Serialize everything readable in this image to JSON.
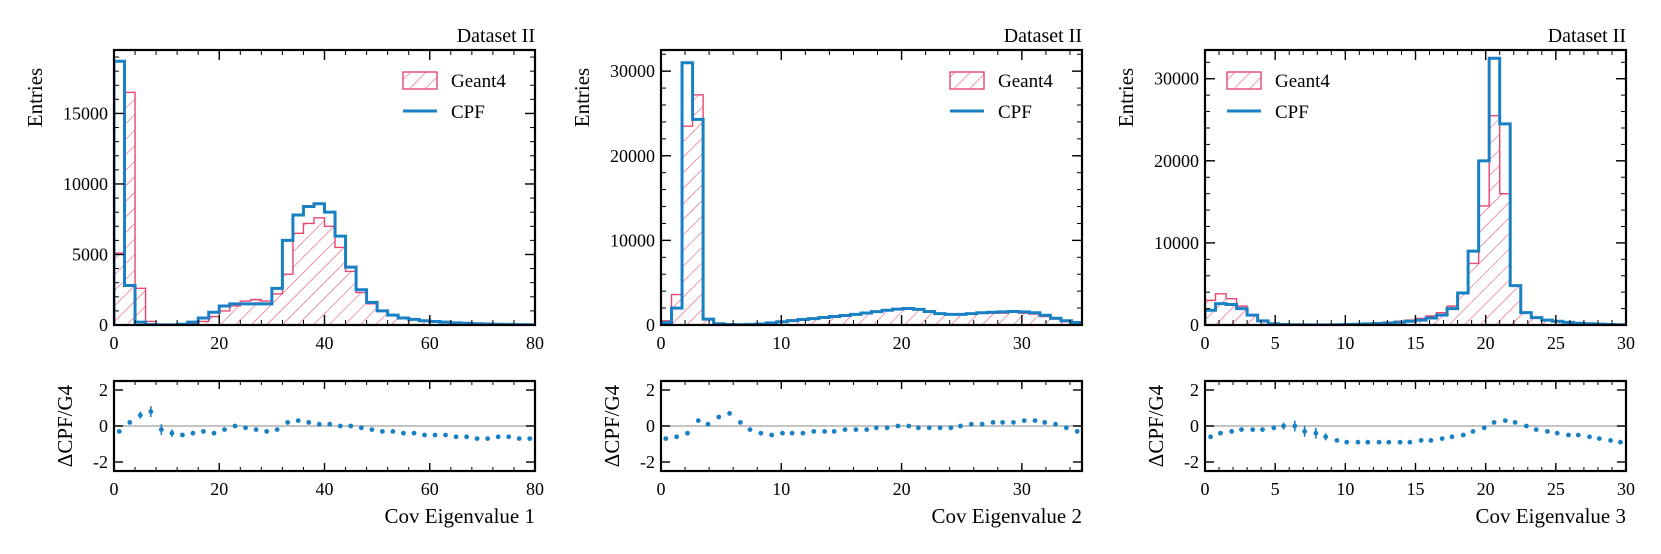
{
  "colors": {
    "geant4": "#e8466f",
    "cpf": "#1a80c4",
    "ratio_points": "#1a80c4",
    "zero_line": "#b0b0b0",
    "axes": "#000000"
  },
  "legend": {
    "geant4_label": "Geant4",
    "cpf_label": "CPF"
  },
  "chart_data": [
    {
      "type": "histogram",
      "title": "Dataset II",
      "xlabel": "Cov Eigenvalue 1",
      "ylabel": "Entries",
      "ratio_ylabel": "ΔCPF/G4",
      "legend_position": "top-right",
      "xlim": [
        0,
        80
      ],
      "ylim": [
        0,
        19500
      ],
      "xticks": [
        0,
        20,
        40,
        60,
        80
      ],
      "yticks": [
        0,
        5000,
        10000,
        15000
      ],
      "ratio_ylim": [
        -2.5,
        2.5
      ],
      "ratio_yticks": [
        -2,
        0,
        2
      ],
      "bin_edges": [
        0,
        2,
        4,
        6,
        8,
        10,
        12,
        14,
        16,
        18,
        20,
        22,
        24,
        26,
        28,
        30,
        32,
        34,
        36,
        38,
        40,
        42,
        44,
        46,
        48,
        50,
        52,
        54,
        56,
        58,
        60,
        62,
        64,
        66,
        68,
        70,
        72,
        74,
        76,
        78,
        80
      ],
      "series": [
        {
          "name": "Geant4",
          "style": "hatched",
          "values": [
            5100,
            16500,
            2600,
            250,
            60,
            30,
            30,
            80,
            250,
            600,
            1000,
            1350,
            1700,
            1800,
            1700,
            2200,
            3600,
            6500,
            7200,
            7600,
            7000,
            5500,
            3800,
            2300,
            1500,
            1000,
            700,
            500,
            400,
            300,
            250,
            200,
            150,
            120,
            90,
            70,
            50,
            40,
            30,
            20
          ]
        },
        {
          "name": "CPF",
          "style": "step",
          "values": [
            18700,
            2800,
            200,
            30,
            10,
            10,
            50,
            200,
            500,
            900,
            1350,
            1500,
            1500,
            1500,
            1500,
            2600,
            6000,
            7800,
            8400,
            8600,
            8000,
            6300,
            4100,
            2500,
            1600,
            1000,
            700,
            500,
            400,
            300,
            250,
            200,
            150,
            120,
            90,
            70,
            50,
            40,
            30,
            20
          ]
        }
      ],
      "ratio": {
        "x": [
          1,
          3,
          5,
          7,
          9,
          11,
          13,
          15,
          17,
          19,
          21,
          23,
          25,
          27,
          29,
          31,
          33,
          35,
          37,
          39,
          41,
          43,
          45,
          47,
          49,
          51,
          53,
          55,
          57,
          59,
          61,
          63,
          65,
          67,
          69,
          71,
          73,
          75,
          77,
          79
        ],
        "values": [
          -0.3,
          0.2,
          0.6,
          0.8,
          -0.2,
          -0.4,
          -0.5,
          -0.4,
          -0.3,
          -0.4,
          -0.2,
          0,
          -0.1,
          -0.2,
          -0.3,
          -0.2,
          0.2,
          0.3,
          0.2,
          0.1,
          0.1,
          0,
          0,
          -0.1,
          -0.2,
          -0.3,
          -0.3,
          -0.4,
          -0.4,
          -0.5,
          -0.5,
          -0.5,
          -0.6,
          -0.6,
          -0.7,
          -0.7,
          -0.6,
          -0.6,
          -0.7,
          -0.7
        ],
        "errors": [
          0.1,
          0.1,
          0.2,
          0.3,
          0.3,
          0.2,
          0.1,
          0.1,
          0.1,
          0.05,
          0.05,
          0.05,
          0.05,
          0.05,
          0.05,
          0.05,
          0.05,
          0.05,
          0.05,
          0.05,
          0.05,
          0.05,
          0.05,
          0.05,
          0.05,
          0.05,
          0.05,
          0.05,
          0.05,
          0.05,
          0.05,
          0.05,
          0.05,
          0.05,
          0.05,
          0.05,
          0.05,
          0.05,
          0.05,
          0.05
        ]
      }
    },
    {
      "type": "histogram",
      "title": "Dataset II",
      "xlabel": "Cov Eigenvalue 2",
      "ylabel": "Entries",
      "ratio_ylabel": "ΔCPF/G4",
      "legend_position": "top-right",
      "xlim": [
        0,
        35
      ],
      "ylim": [
        0,
        32500
      ],
      "xticks": [
        0,
        10,
        20,
        30
      ],
      "yticks": [
        0,
        10000,
        20000,
        30000
      ],
      "ratio_ylim": [
        -2.5,
        2.5
      ],
      "ratio_yticks": [
        -2,
        0,
        2
      ],
      "bin_edges": [
        0,
        0.875,
        1.75,
        2.625,
        3.5,
        4.375,
        5.25,
        6.125,
        7,
        7.875,
        8.75,
        9.625,
        10.5,
        11.375,
        12.25,
        13.125,
        14,
        14.875,
        15.75,
        16.625,
        17.5,
        18.375,
        19.25,
        20.125,
        21,
        21.875,
        22.75,
        23.625,
        24.5,
        25.375,
        26.25,
        27.125,
        28,
        28.875,
        29.75,
        30.625,
        31.5,
        32.375,
        33.25,
        34.125,
        35
      ],
      "series": [
        {
          "name": "Geant4",
          "style": "hatched",
          "values": [
            500,
            3600,
            23500,
            27200,
            700,
            200,
            80,
            50,
            80,
            150,
            300,
            450,
            600,
            700,
            800,
            900,
            1000,
            1100,
            1200,
            1400,
            1500,
            1700,
            1800,
            1900,
            1800,
            1600,
            1300,
            1200,
            1200,
            1300,
            1400,
            1400,
            1400,
            1500,
            1400,
            1300,
            1000,
            700,
            400,
            250
          ]
        },
        {
          "name": "CPF",
          "style": "step",
          "values": [
            300,
            2000,
            31000,
            24300,
            700,
            150,
            60,
            40,
            70,
            120,
            250,
            380,
            520,
            650,
            760,
            880,
            1000,
            1120,
            1250,
            1420,
            1580,
            1750,
            1870,
            1950,
            1850,
            1600,
            1350,
            1250,
            1250,
            1350,
            1450,
            1500,
            1550,
            1600,
            1550,
            1450,
            1150,
            800,
            500,
            300
          ]
        }
      ],
      "ratio": {
        "x": [
          0.4,
          1.3,
          2.2,
          3.1,
          3.9,
          4.8,
          5.7,
          6.6,
          7.4,
          8.3,
          9.2,
          10.1,
          10.9,
          11.8,
          12.7,
          13.6,
          14.4,
          15.3,
          16.2,
          17.1,
          17.9,
          18.8,
          19.7,
          20.6,
          21.4,
          22.3,
          23.2,
          24.1,
          24.9,
          25.8,
          26.7,
          27.6,
          28.4,
          29.3,
          30.2,
          31.1,
          31.9,
          32.8,
          33.7,
          34.6
        ],
        "values": [
          -0.7,
          -0.6,
          -0.4,
          0.3,
          0.1,
          0.5,
          0.7,
          0.2,
          -0.2,
          -0.4,
          -0.5,
          -0.4,
          -0.4,
          -0.4,
          -0.3,
          -0.3,
          -0.3,
          -0.2,
          -0.2,
          -0.2,
          -0.1,
          -0.1,
          0,
          0,
          -0.1,
          -0.1,
          -0.1,
          -0.1,
          0,
          0.1,
          0.1,
          0.2,
          0.2,
          0.2,
          0.3,
          0.3,
          0.2,
          0.1,
          -0.1,
          -0.3
        ],
        "errors": [
          0.1,
          0.1,
          0.1,
          0.05,
          0.05,
          0.1,
          0.1,
          0.1,
          0.1,
          0.1,
          0.05,
          0.05,
          0.05,
          0.05,
          0.05,
          0.05,
          0.05,
          0.05,
          0.05,
          0.05,
          0.05,
          0.05,
          0.05,
          0.05,
          0.05,
          0.05,
          0.05,
          0.05,
          0.05,
          0.05,
          0.05,
          0.05,
          0.05,
          0.05,
          0.05,
          0.05,
          0.05,
          0.05,
          0.05,
          0.05
        ]
      }
    },
    {
      "type": "histogram",
      "title": "Dataset II",
      "xlabel": "Cov Eigenvalue 3",
      "ylabel": "Entries",
      "ratio_ylabel": "ΔCPF/G4",
      "legend_position": "top-left",
      "xlim": [
        0,
        30
      ],
      "ylim": [
        0,
        33500
      ],
      "xticks": [
        0,
        5,
        10,
        15,
        20,
        25,
        30
      ],
      "yticks": [
        0,
        10000,
        20000,
        30000
      ],
      "ratio_ylim": [
        -2.5,
        2.5
      ],
      "ratio_yticks": [
        -2,
        0,
        2
      ],
      "bin_edges": [
        0,
        0.75,
        1.5,
        2.25,
        3,
        3.75,
        4.5,
        5.25,
        6,
        6.75,
        7.5,
        8.25,
        9,
        9.75,
        10.5,
        11.25,
        12,
        12.75,
        13.5,
        14.25,
        15,
        15.75,
        16.5,
        17.25,
        18,
        18.75,
        19.5,
        20.25,
        21,
        21.75,
        22.5,
        23.25,
        24,
        24.75,
        25.5,
        26.25,
        27,
        27.75,
        28.5,
        29.25,
        30
      ],
      "series": [
        {
          "name": "Geant4",
          "style": "hatched",
          "values": [
            3000,
            3800,
            3200,
            2300,
            1200,
            500,
            150,
            60,
            30,
            20,
            20,
            30,
            50,
            80,
            120,
            180,
            250,
            350,
            450,
            600,
            800,
            1100,
            1500,
            2300,
            4000,
            7500,
            14500,
            25500,
            16000,
            4800,
            1500,
            900,
            600,
            450,
            320,
            220,
            150,
            100,
            60,
            30
          ]
        },
        {
          "name": "CPF",
          "style": "step",
          "values": [
            1800,
            2600,
            2500,
            2000,
            1200,
            500,
            150,
            60,
            30,
            20,
            15,
            20,
            35,
            60,
            90,
            130,
            180,
            250,
            330,
            450,
            600,
            850,
            1200,
            2000,
            3900,
            9000,
            20000,
            32500,
            24500,
            4800,
            1500,
            900,
            600,
            450,
            320,
            220,
            150,
            100,
            60,
            30
          ]
        }
      ],
      "ratio": {
        "x": [
          0.4,
          1.1,
          1.9,
          2.6,
          3.4,
          4.1,
          4.9,
          5.6,
          6.4,
          7.1,
          7.9,
          8.6,
          9.4,
          10.1,
          10.9,
          11.6,
          12.4,
          13.1,
          13.9,
          14.6,
          15.4,
          16.1,
          16.9,
          17.6,
          18.4,
          19.1,
          19.9,
          20.6,
          21.4,
          22.1,
          22.9,
          23.6,
          24.4,
          25.1,
          25.9,
          26.6,
          27.4,
          28.1,
          28.9,
          29.6
        ],
        "values": [
          -0.6,
          -0.4,
          -0.3,
          -0.2,
          -0.2,
          -0.2,
          -0.1,
          0,
          0,
          -0.3,
          -0.4,
          -0.6,
          -0.8,
          -0.9,
          -0.9,
          -0.9,
          -0.9,
          -0.9,
          -0.9,
          -0.9,
          -0.8,
          -0.8,
          -0.7,
          -0.6,
          -0.5,
          -0.3,
          -0.1,
          0.2,
          0.3,
          0.2,
          0,
          -0.2,
          -0.3,
          -0.4,
          -0.5,
          -0.5,
          -0.6,
          -0.7,
          -0.8,
          -0.9
        ],
        "errors": [
          0.1,
          0.05,
          0.05,
          0.05,
          0.05,
          0.05,
          0.1,
          0.2,
          0.3,
          0.3,
          0.3,
          0.2,
          0.1,
          0.05,
          0.05,
          0.05,
          0.05,
          0.05,
          0.05,
          0.05,
          0.05,
          0.05,
          0.05,
          0.05,
          0.05,
          0.05,
          0.05,
          0.05,
          0.05,
          0.05,
          0.05,
          0.05,
          0.05,
          0.05,
          0.05,
          0.05,
          0.05,
          0.05,
          0.05,
          0.05
        ]
      }
    }
  ]
}
